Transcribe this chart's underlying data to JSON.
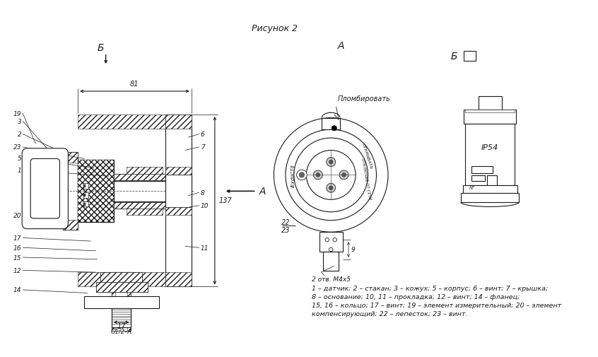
{
  "title": "Рисунок 2",
  "bg_color": "#ffffff",
  "line_color": "#1a1a1a",
  "legend_line1": "1 – датчик; 2 – стакан; 3 – кожух; 5 – корпус; 6 – винт; 7 – крышка;",
  "legend_line2": "8 – основание; 10, 11 – прокладка; 12 – винт; 14 – фланец;",
  "legend_line3": "15, 16 – кольцо; 17 – винт; 19 – элемент измерительный; 20 – элемент",
  "legend_line4": "компенсирующий; 22 – лепесток; 23 – винт."
}
